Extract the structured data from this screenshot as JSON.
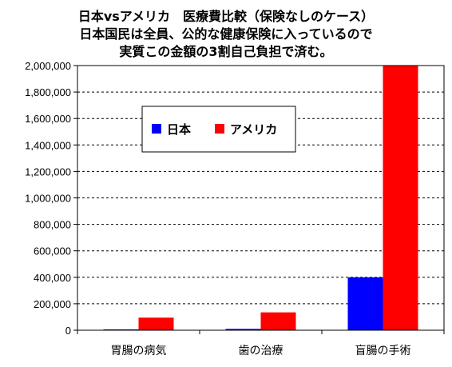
{
  "chart_data": {
    "type": "bar",
    "title": [
      "日本vsアメリカ　医療費比較（保険なしのケース）",
      "日本国民は全員、公的な健康保険に入っているので",
      "実質この金額の3割自己負担で済む。"
    ],
    "xlabel": "",
    "ylabel": "",
    "categories": [
      "胃腸の病気",
      "歯の治療",
      "盲腸の手術"
    ],
    "series": [
      {
        "name": "日本",
        "color": "#0000ff",
        "values": [
          3000,
          10000,
          400000
        ]
      },
      {
        "name": "アメリカ",
        "color": "#ff0000",
        "values": [
          95000,
          135000,
          2000000
        ]
      }
    ],
    "ylim": [
      0,
      2000000
    ],
    "yticks": [
      0,
      200000,
      400000,
      600000,
      800000,
      1000000,
      1200000,
      1400000,
      1600000,
      1800000,
      2000000
    ],
    "ytick_labels": [
      "0",
      "200,000",
      "400,000",
      "600,000",
      "800,000",
      "1,000,000",
      "1,200,000",
      "1,400,000",
      "1,600,000",
      "1,800,000",
      "2,000,000"
    ],
    "grid": true,
    "grid_style": "dashed",
    "legend_position": "top-left inside plot"
  }
}
